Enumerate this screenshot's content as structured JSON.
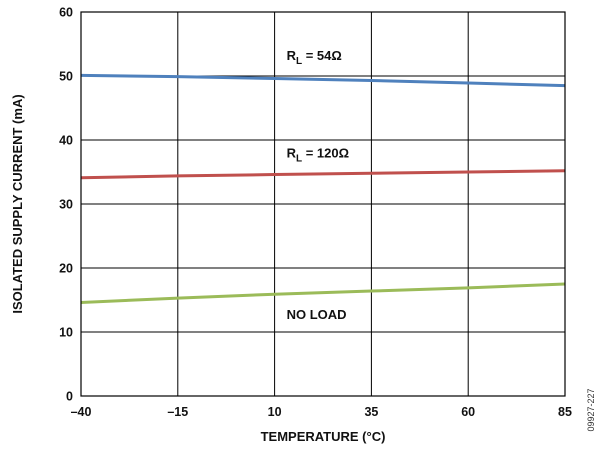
{
  "chart_data": {
    "type": "line",
    "xlabel": "TEMPERATURE (°C)",
    "ylabel": "ISOLATED SUPPLY CURRENT (mA)",
    "xlim": [
      -40,
      85
    ],
    "ylim": [
      0,
      60
    ],
    "x_ticks": [
      -40,
      -15,
      10,
      35,
      60,
      85
    ],
    "x_tick_labels": [
      "–40",
      "–15",
      "10",
      "35",
      "60",
      "85"
    ],
    "y_ticks": [
      0,
      10,
      20,
      30,
      40,
      50,
      60
    ],
    "y_tick_labels": [
      "0",
      "10",
      "20",
      "30",
      "40",
      "50",
      "60"
    ],
    "grid": true,
    "series": [
      {
        "name": "RL = 54Ω",
        "label_main": "R",
        "label_sub": "L",
        "label_rest": " = 54Ω",
        "color": "#4f81bd",
        "x": [
          -40,
          -15,
          10,
          35,
          60,
          85
        ],
        "y": [
          50.1,
          49.9,
          49.6,
          49.3,
          48.9,
          48.5
        ]
      },
      {
        "name": "RL = 120Ω",
        "label_main": "R",
        "label_sub": "L",
        "label_rest": " = 120Ω",
        "color": "#c0504d",
        "x": [
          -40,
          -15,
          10,
          35,
          60,
          85
        ],
        "y": [
          34.1,
          34.4,
          34.6,
          34.8,
          35.0,
          35.2
        ]
      },
      {
        "name": "NO LOAD",
        "label_main": "NO LOAD",
        "label_sub": "",
        "label_rest": "",
        "color": "#9bbb59",
        "x": [
          -40,
          -15,
          10,
          35,
          60,
          85
        ],
        "y": [
          14.6,
          15.3,
          15.9,
          16.4,
          16.9,
          17.5
        ]
      }
    ],
    "figure_id": "09927-227"
  }
}
